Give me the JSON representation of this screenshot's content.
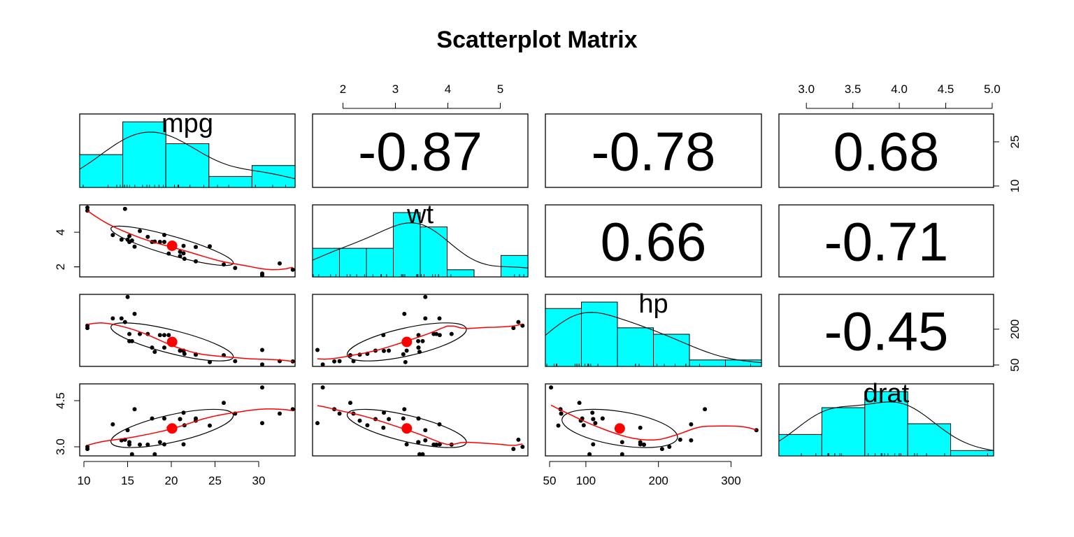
{
  "title": "Scatterplot Matrix",
  "colors": {
    "hist_fill": "#00ffff",
    "fit_line": "#ff0000",
    "centroid": "#ff0000",
    "points": "#000000",
    "frame": "#000000"
  },
  "chart_data": {
    "type": "scatter",
    "subtype": "scatterplot-matrix",
    "variables": [
      "mpg",
      "wt",
      "hp",
      "drat"
    ],
    "diagonal": "histogram with density curve",
    "upper_panels": "correlation coefficients",
    "lower_panels": "scatter with loess smoother, data ellipse and centroid",
    "ranges": {
      "mpg": [
        10,
        34
      ],
      "wt": [
        1.5,
        5.5
      ],
      "hp": [
        50,
        340
      ],
      "drat": [
        2.75,
        5.0
      ]
    },
    "ticks": {
      "mpg": {
        "values": [
          10,
          15,
          20,
          25,
          30
        ],
        "labels": [
          "10",
          "15",
          "20",
          "25",
          "30"
        ]
      },
      "wt": {
        "values": [
          2,
          3,
          4,
          5
        ],
        "labels": [
          "2",
          "3",
          "4",
          "5"
        ]
      },
      "wt_left": {
        "values": [
          2,
          4
        ],
        "labels": [
          "2",
          "4"
        ]
      },
      "hp": {
        "values": [
          50,
          100,
          200,
          300
        ],
        "labels": [
          "50",
          "100",
          "200",
          "300"
        ]
      },
      "hp_right": {
        "values": [
          50,
          200
        ],
        "labels": [
          "50",
          "200"
        ]
      },
      "drat": {
        "values": [
          3.0,
          3.5,
          4.0,
          4.5,
          5.0
        ],
        "labels": [
          "3.0",
          "3.5",
          "4.0",
          "4.5",
          "5.0"
        ]
      },
      "drat_left": {
        "values": [
          3.0,
          4.5
        ],
        "labels": [
          "3.0",
          "4.5"
        ]
      },
      "mpg_right": {
        "values": [
          10,
          25
        ],
        "labels": [
          "10",
          "25"
        ]
      }
    },
    "correlations": [
      {
        "row": "mpg",
        "col": "wt",
        "value": "-0.87"
      },
      {
        "row": "mpg",
        "col": "hp",
        "value": "-0.78"
      },
      {
        "row": "mpg",
        "col": "drat",
        "value": "0.68"
      },
      {
        "row": "wt",
        "col": "hp",
        "value": "0.66"
      },
      {
        "row": "wt",
        "col": "drat",
        "value": "-0.71"
      },
      {
        "row": "hp",
        "col": "drat",
        "value": "-0.45"
      }
    ],
    "histograms": {
      "mpg": {
        "breaks": [
          10,
          15,
          20,
          25,
          30,
          35
        ],
        "counts": [
          6,
          12,
          8,
          2,
          4
        ]
      },
      "wt": {
        "breaks": [
          1.5,
          2.0,
          2.5,
          3.0,
          3.5,
          4.0,
          4.5,
          5.0,
          5.5
        ],
        "counts": [
          4,
          4,
          4,
          9,
          7,
          1,
          0,
          3
        ]
      },
      "hp": {
        "breaks": [
          50,
          100,
          150,
          200,
          250,
          300,
          350
        ],
        "counts": [
          9,
          10,
          6,
          5,
          1,
          1
        ]
      },
      "drat": {
        "breaks": [
          2.5,
          3.0,
          3.5,
          4.0,
          4.5,
          5.0
        ],
        "counts": [
          4,
          9,
          12,
          6,
          1
        ]
      }
    },
    "observations": {
      "mpg": [
        21.0,
        21.0,
        22.8,
        21.4,
        18.7,
        18.1,
        14.3,
        24.4,
        22.8,
        19.2,
        17.8,
        16.4,
        17.3,
        15.2,
        10.4,
        10.4,
        14.7,
        32.4,
        30.4,
        33.9,
        21.5,
        15.5,
        15.2,
        13.3,
        19.2,
        27.3,
        26.0,
        30.4,
        15.8,
        19.7,
        15.0,
        21.4
      ],
      "wt": [
        2.62,
        2.875,
        2.32,
        3.215,
        3.44,
        3.46,
        3.57,
        3.19,
        3.15,
        3.44,
        3.44,
        4.07,
        3.73,
        3.78,
        5.25,
        5.424,
        5.345,
        2.2,
        1.615,
        1.835,
        2.465,
        3.52,
        3.435,
        3.84,
        3.845,
        1.935,
        2.14,
        1.513,
        3.17,
        2.77,
        3.57,
        2.78
      ],
      "hp": [
        110,
        110,
        93,
        110,
        175,
        105,
        245,
        62,
        95,
        123,
        123,
        180,
        180,
        180,
        205,
        215,
        230,
        66,
        52,
        65,
        97,
        150,
        150,
        245,
        175,
        66,
        91,
        113,
        264,
        175,
        335,
        109
      ],
      "drat": [
        3.9,
        3.9,
        3.85,
        3.08,
        3.15,
        2.76,
        3.21,
        3.69,
        3.92,
        3.92,
        3.92,
        3.07,
        3.07,
        3.07,
        2.93,
        3.0,
        3.23,
        4.08,
        4.93,
        4.22,
        3.7,
        2.76,
        3.15,
        3.73,
        3.08,
        4.08,
        4.43,
        3.77,
        4.22,
        3.62,
        3.54,
        4.11
      ]
    },
    "means": {
      "mpg": 20.09,
      "wt": 3.22,
      "hp": 146.7,
      "drat": 3.6
    },
    "grid": false
  }
}
